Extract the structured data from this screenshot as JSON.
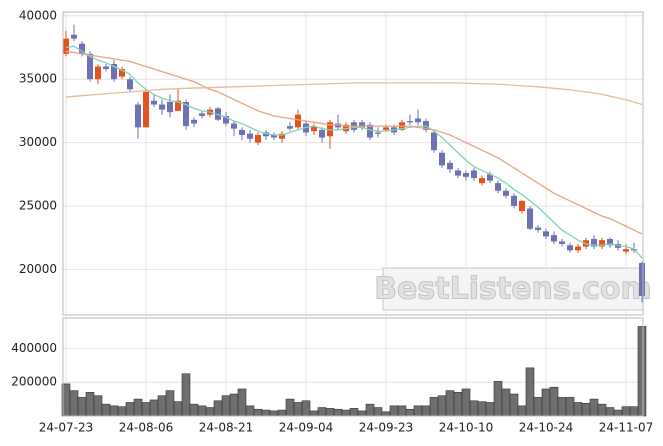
{
  "chart_data": [
    {
      "type": "candlestick",
      "categories": [
        "24-07-23",
        null,
        null,
        null,
        null,
        null,
        null,
        null,
        null,
        null,
        "24-08-06",
        null,
        null,
        null,
        null,
        null,
        null,
        null,
        null,
        null,
        "24-08-21",
        null,
        null,
        null,
        null,
        null,
        null,
        null,
        null,
        null,
        "24-09-04",
        null,
        null,
        null,
        null,
        null,
        null,
        null,
        null,
        null,
        "24-09-23",
        null,
        null,
        null,
        null,
        null,
        null,
        null,
        null,
        null,
        "24-10-10",
        null,
        null,
        null,
        null,
        null,
        null,
        null,
        null,
        null,
        "24-10-24",
        null,
        null,
        null,
        null,
        null,
        null,
        null,
        null,
        null,
        "24-11-07",
        null,
        null
      ],
      "open": [
        37000,
        38500,
        37800,
        37000,
        35000,
        36000,
        36200,
        35200,
        35000,
        33000,
        31200,
        33300,
        33000,
        33200,
        32500,
        33200,
        31800,
        32300,
        32200,
        32700,
        32100,
        31500,
        31000,
        30700,
        30000,
        30800,
        30600,
        30300,
        31300,
        31200,
        31500,
        30900,
        31000,
        30500,
        31500,
        30900,
        31600,
        31600,
        31400,
        30800,
        31000,
        31200,
        31000,
        31700,
        31900,
        31700,
        30800,
        29200,
        28400,
        27800,
        27600,
        27800,
        26800,
        27500,
        26800,
        26200,
        25800,
        24600,
        24800,
        23300,
        23000,
        22700,
        22200,
        21900,
        21500,
        21800,
        22400,
        21800,
        22400,
        22000,
        21400,
        21600,
        20500
      ],
      "high": [
        38800,
        39300,
        38000,
        37200,
        36200,
        36200,
        36500,
        36000,
        35200,
        33200,
        34200,
        33800,
        33400,
        33800,
        34200,
        33400,
        32000,
        32500,
        32800,
        32800,
        32400,
        31700,
        31200,
        31000,
        30800,
        31000,
        30800,
        30900,
        31600,
        32600,
        31700,
        31500,
        31200,
        31800,
        32200,
        31600,
        31800,
        31800,
        31600,
        31200,
        31400,
        31400,
        31800,
        32200,
        32600,
        31900,
        31000,
        29400,
        28600,
        28000,
        27800,
        28000,
        27400,
        27700,
        27000,
        26400,
        26000,
        25500,
        25000,
        23500,
        23200,
        23000,
        22400,
        22100,
        22000,
        22500,
        22700,
        22500,
        22500,
        22300,
        22000,
        22100,
        20600
      ],
      "low": [
        36800,
        38000,
        36800,
        34800,
        34600,
        35600,
        34800,
        35000,
        34000,
        30300,
        31200,
        32800,
        32200,
        32000,
        32500,
        31000,
        31200,
        31900,
        32000,
        31700,
        31300,
        30500,
        30200,
        30000,
        29800,
        30200,
        30200,
        30000,
        30900,
        31000,
        30500,
        30600,
        30000,
        29500,
        31000,
        30700,
        30800,
        31000,
        30200,
        30400,
        30900,
        30600,
        30900,
        31400,
        31400,
        30800,
        29200,
        28000,
        27600,
        27200,
        27000,
        27000,
        26600,
        26800,
        26000,
        25600,
        24800,
        24400,
        23100,
        22900,
        22400,
        22000,
        21800,
        21300,
        21300,
        21600,
        21600,
        21600,
        21700,
        21500,
        21200,
        21300,
        17400
      ],
      "close": [
        38200,
        38200,
        37000,
        35000,
        36000,
        35800,
        35000,
        35800,
        34200,
        31200,
        34000,
        33000,
        32600,
        32400,
        33300,
        31300,
        31500,
        32100,
        32600,
        31800,
        31500,
        31100,
        30600,
        30300,
        30600,
        30500,
        30400,
        30700,
        31100,
        32200,
        30800,
        31300,
        30400,
        31600,
        31200,
        31400,
        31000,
        31200,
        30400,
        30700,
        31200,
        30800,
        31600,
        31600,
        31600,
        31000,
        29400,
        28200,
        27900,
        27400,
        27300,
        27200,
        27200,
        27000,
        26200,
        25800,
        25000,
        25400,
        23200,
        23100,
        22600,
        22200,
        22000,
        21500,
        21800,
        22300,
        21800,
        22300,
        21900,
        21700,
        21600,
        21500,
        17900
      ],
      "up_color": "#e4531d",
      "down_color": "#6e72b3",
      "series": [
        {
          "color": "#7fd3b6",
          "values": [
            37500,
            37600,
            37200,
            36800,
            36500,
            36300,
            36000,
            35700,
            35400,
            34700,
            34200,
            33800,
            33500,
            33300,
            33200,
            33000,
            32700,
            32500,
            32400,
            32200,
            32000,
            31700,
            31500,
            31200,
            30900,
            30700,
            30600,
            30600,
            30800,
            31000,
            31200,
            31300,
            31100,
            31000,
            31000,
            31100,
            31200,
            31200,
            31000,
            30900,
            30900,
            31000,
            31100,
            31200,
            31300,
            31300,
            30900,
            30400,
            29800,
            29200,
            28600,
            28100,
            27800,
            27500,
            27200,
            26800,
            26300,
            25900,
            25400,
            24900,
            24300,
            23700,
            23100,
            22700,
            22300,
            22000,
            21900,
            21900,
            22000,
            21900,
            21800,
            21600,
            20900
          ]
        },
        {
          "color": "#eba283",
          "values": [
            37200,
            37100,
            37000,
            36900,
            36800,
            36700,
            36600,
            36500,
            36400,
            36200,
            36000,
            35800,
            35600,
            35400,
            35200,
            35000,
            34800,
            34500,
            34200,
            34000,
            33700,
            33400,
            33100,
            32800,
            32500,
            32300,
            32100,
            32000,
            31900,
            31800,
            31700,
            31600,
            31500,
            31400,
            31400,
            31300,
            31300,
            31300,
            31300,
            31300,
            31300,
            31300,
            31300,
            31300,
            31200,
            31100,
            31000,
            30800,
            30600,
            30300,
            30000,
            29700,
            29400,
            29100,
            28800,
            28400,
            28000,
            27600,
            27200,
            26800,
            26400,
            26000,
            25700,
            25400,
            25100,
            24800,
            24500,
            24200,
            24000,
            23700,
            23400,
            23100,
            22800
          ]
        },
        {
          "color": "#e9bc95",
          "values": [
            33600,
            33650,
            33700,
            33750,
            33800,
            33850,
            33900,
            33950,
            34000,
            34050,
            34100,
            34150,
            34200,
            34220,
            34250,
            34280,
            34300,
            34320,
            34340,
            34360,
            34380,
            34400,
            34420,
            34440,
            34460,
            34480,
            34500,
            34520,
            34540,
            34560,
            34580,
            34600,
            34620,
            34640,
            34660,
            34680,
            34700,
            34700,
            34700,
            34700,
            34700,
            34720,
            34720,
            34720,
            34720,
            34720,
            34700,
            34700,
            34700,
            34700,
            34680,
            34660,
            34640,
            34620,
            34600,
            34560,
            34520,
            34480,
            34440,
            34400,
            34340,
            34280,
            34220,
            34160,
            34080,
            34000,
            33900,
            33800,
            33660,
            33520,
            33380,
            33200,
            33000
          ]
        }
      ],
      "ylim": [
        16400,
        40300
      ],
      "yticks": [
        20000,
        25000,
        30000,
        35000,
        40000
      ],
      "grid": true,
      "watermark": "BestListens.com"
    },
    {
      "type": "bar",
      "color": "#6f6f6f",
      "values": [
        190000,
        150000,
        110000,
        140000,
        120000,
        70000,
        60000,
        55000,
        80000,
        100000,
        80000,
        95000,
        120000,
        150000,
        85000,
        250000,
        70000,
        60000,
        50000,
        90000,
        120000,
        130000,
        160000,
        60000,
        40000,
        35000,
        30000,
        35000,
        100000,
        80000,
        90000,
        30000,
        50000,
        45000,
        40000,
        35000,
        45000,
        30000,
        70000,
        50000,
        25000,
        60000,
        60000,
        40000,
        60000,
        60000,
        110000,
        120000,
        150000,
        140000,
        160000,
        90000,
        85000,
        80000,
        205000,
        160000,
        130000,
        60000,
        285000,
        110000,
        160000,
        170000,
        110000,
        110000,
        80000,
        75000,
        100000,
        70000,
        50000,
        35000,
        55000,
        55000,
        530000
      ],
      "ylim": [
        0,
        580000
      ],
      "yticks": [
        200000,
        400000
      ],
      "grid": true
    }
  ]
}
